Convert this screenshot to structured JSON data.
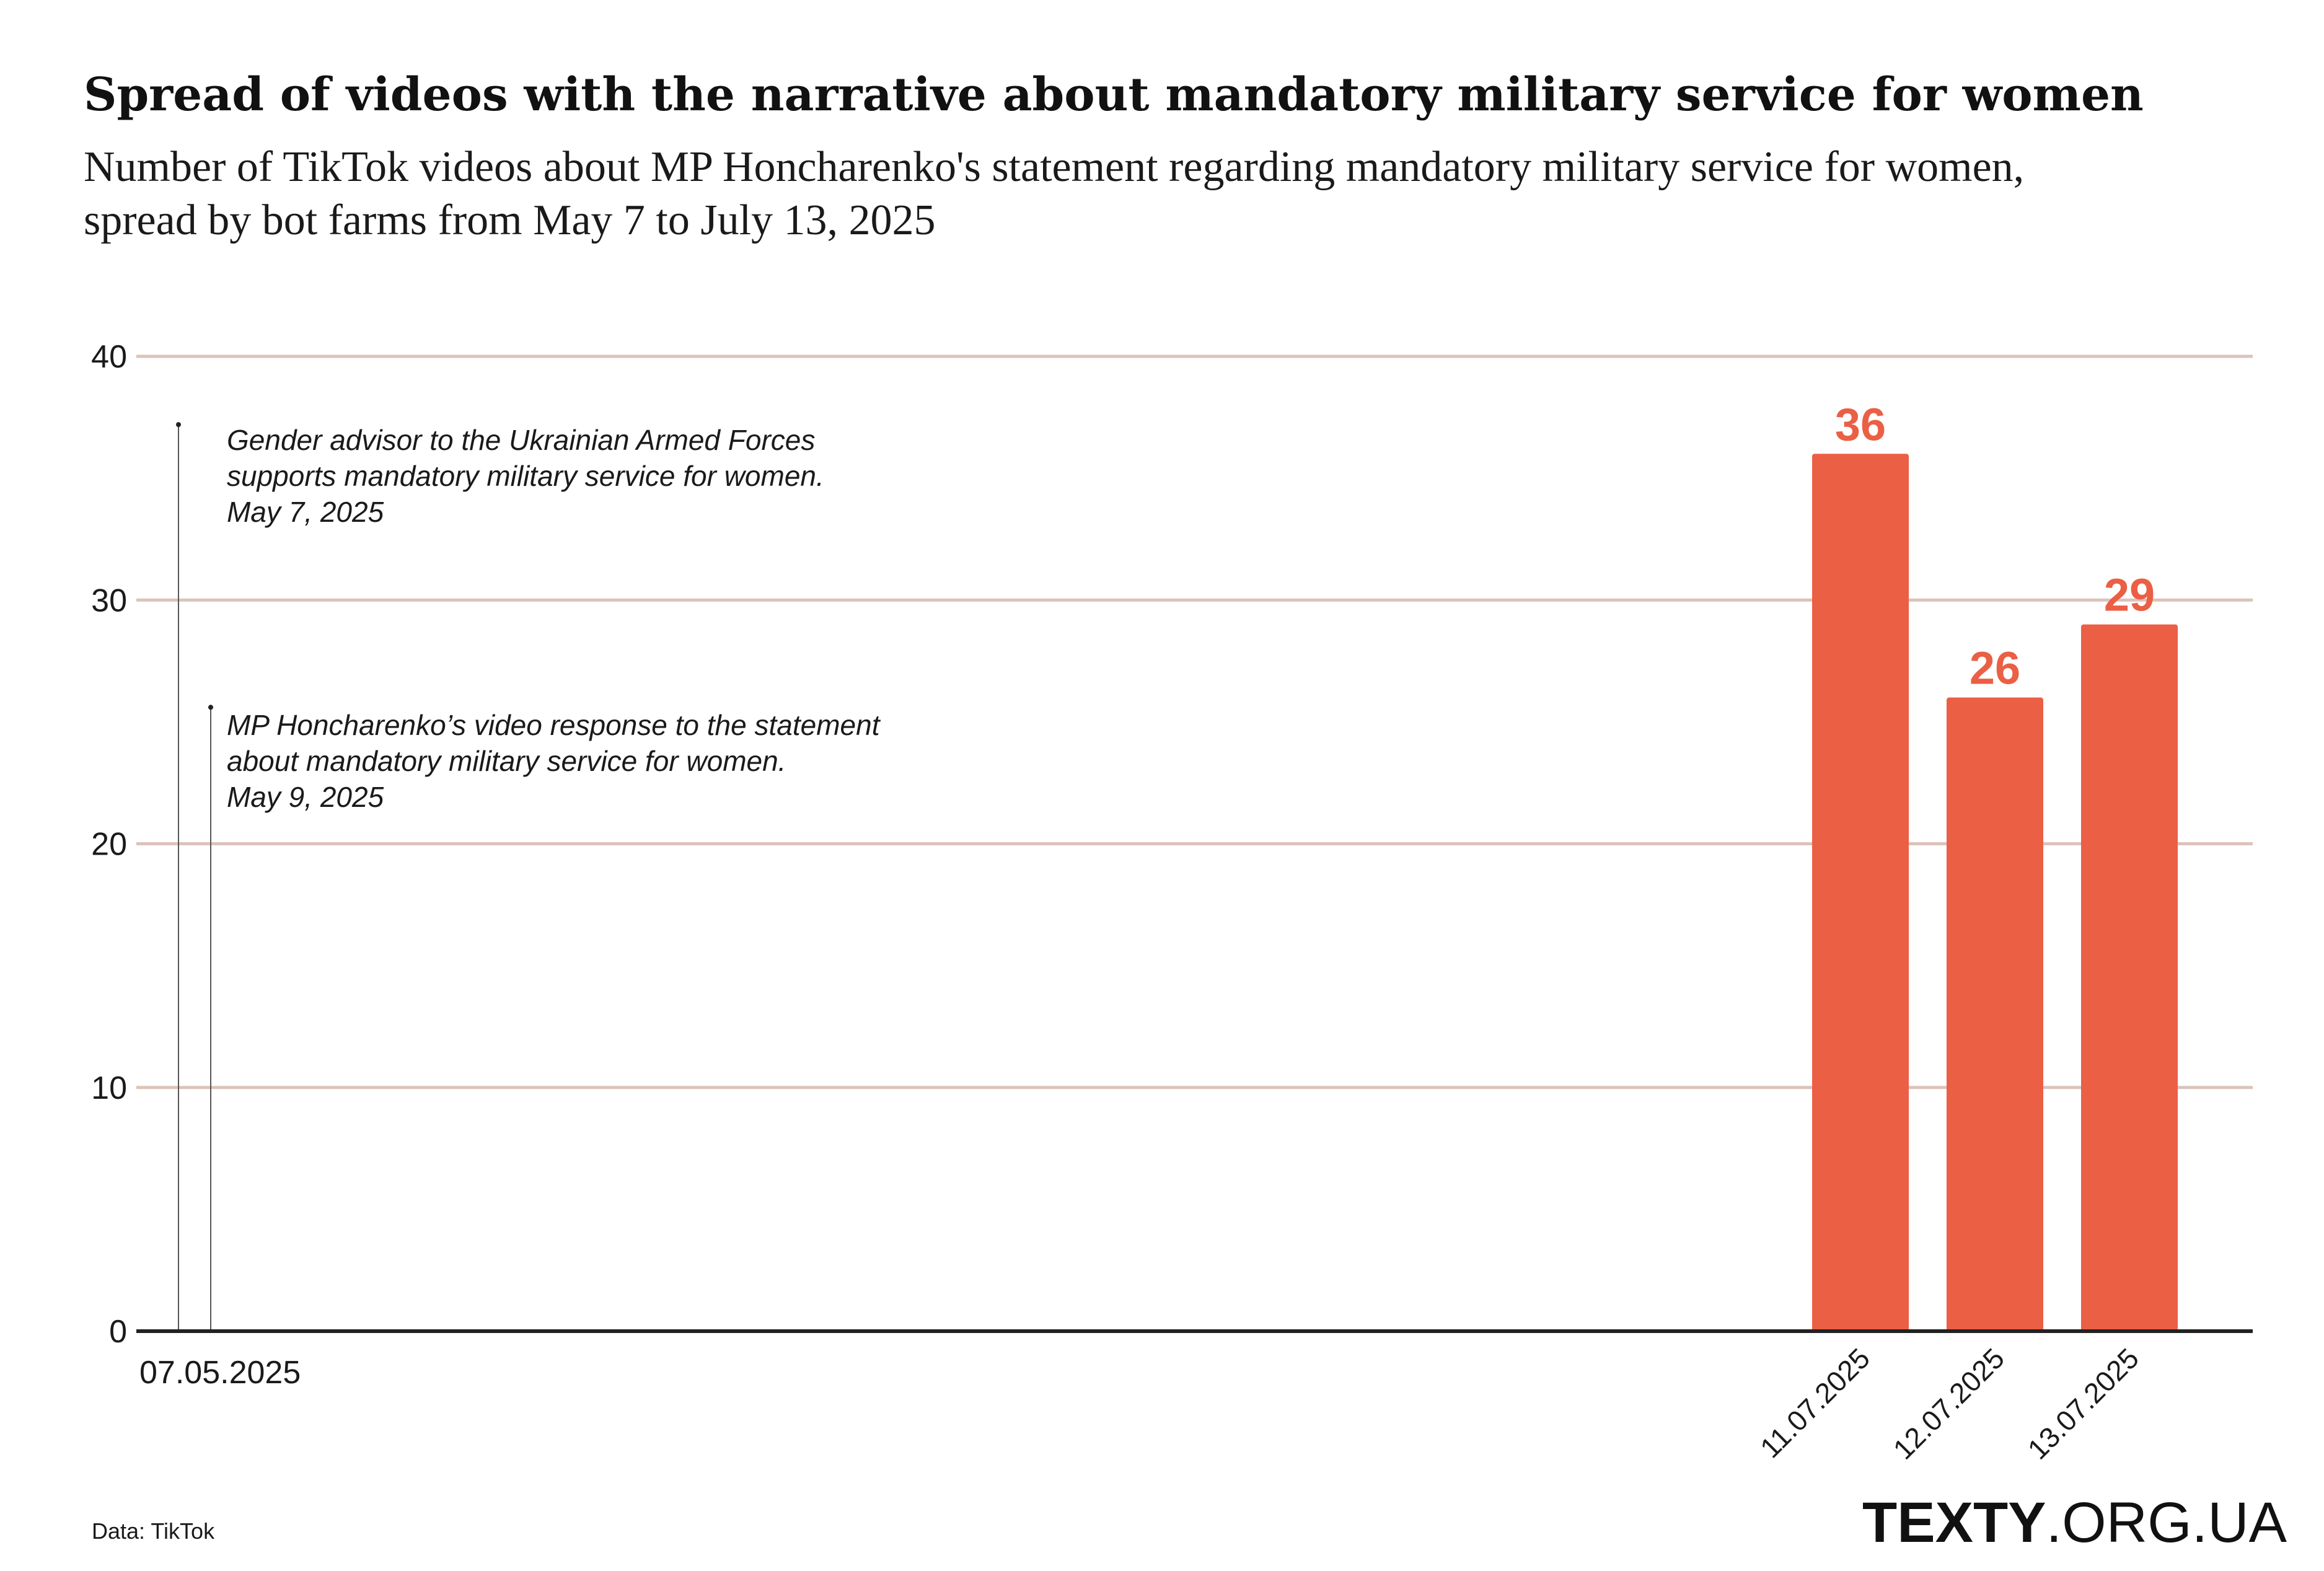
{
  "chart_data": {
    "type": "bar",
    "title": "Spread of videos with the narrative about mandatory military service for women",
    "subtitle_lines": [
      "Number of TikTok videos about MP Honcharenko's statement regarding mandatory military service for women,",
      "spread by bot farms from May 7 to July 13, 2025"
    ],
    "xlabel": "",
    "ylabel": "",
    "ylim": [
      0,
      40
    ],
    "yticks": [
      "0",
      "10",
      "20",
      "30",
      "40"
    ],
    "grid": true,
    "x_start_label": "07.05.2025",
    "categories": [
      "11.07.2025",
      "12.07.2025",
      "13.07.2025"
    ],
    "values": [
      36,
      26,
      29
    ],
    "value_labels": [
      "36",
      "26",
      "29"
    ],
    "annotations": [
      {
        "date": "07.05.2025",
        "value": 37.2,
        "lines": [
          "Gender advisor to the Ukrainian Armed Forces",
          "supports mandatory military service for women.",
          "May 7, 2025"
        ]
      },
      {
        "date": "09.05.2025",
        "value": 25.6,
        "lines": [
          "MP Honcharenko’s video response to the statement",
          "about mandatory military service for women.",
          "May 9, 2025"
        ]
      }
    ],
    "source": "Data: TikTok",
    "brand": {
      "bold": "TEXTY",
      "light": ".ORG.UA"
    },
    "colors": {
      "bar": "#EB5F45",
      "grid": "#DCC3B8",
      "axis": "#222222",
      "annotation_line": "#555555"
    }
  }
}
